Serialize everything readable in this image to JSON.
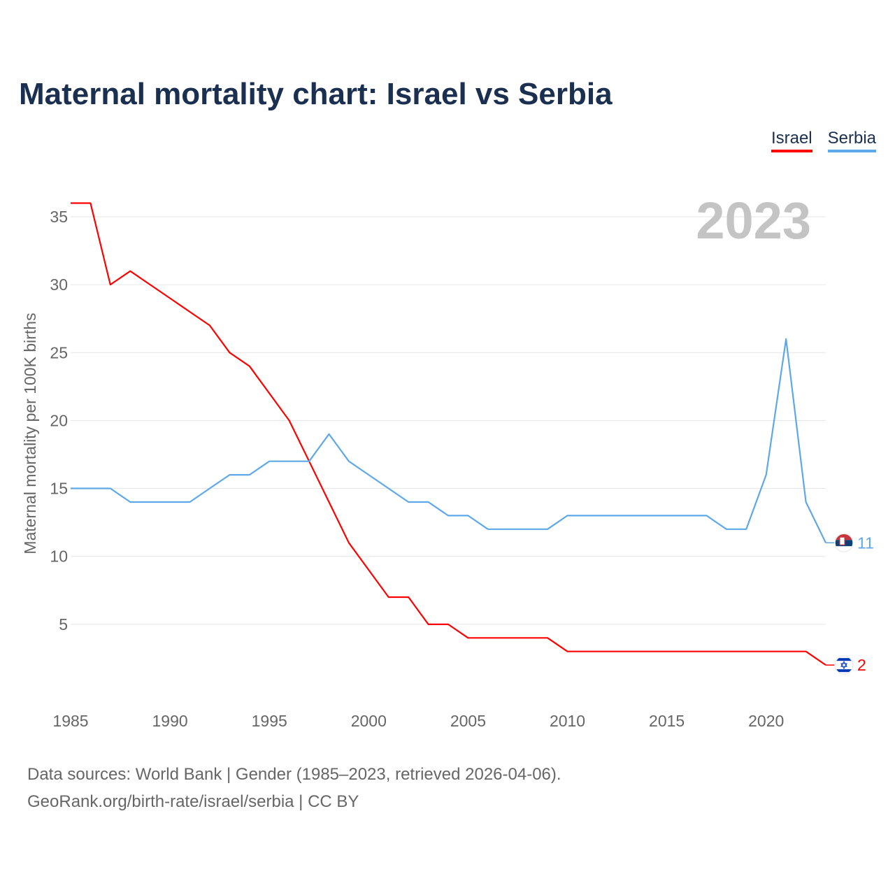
{
  "title": "Maternal mortality chart: Israel vs Serbia",
  "legend": [
    {
      "label": "Israel",
      "color": "#ff0000"
    },
    {
      "label": "Serbia",
      "color": "#5fa8e8"
    }
  ],
  "year_label": "2023",
  "source_line1": "Data sources: World Bank | Gender (1985–2023, retrieved 2026-04-06).",
  "source_line2": "GeoRank.org/birth-rate/israel/serbia | CC BY",
  "chart_data": {
    "type": "line",
    "title": "Maternal mortality chart: Israel vs Serbia",
    "xlabel": "",
    "ylabel": "Maternal mortality per 100K births",
    "x": [
      1985,
      1986,
      1987,
      1988,
      1989,
      1990,
      1991,
      1992,
      1993,
      1994,
      1995,
      1996,
      1997,
      1998,
      1999,
      2000,
      2001,
      2002,
      2003,
      2004,
      2005,
      2006,
      2007,
      2008,
      2009,
      2010,
      2011,
      2012,
      2013,
      2014,
      2015,
      2016,
      2017,
      2018,
      2019,
      2020,
      2021,
      2022,
      2023
    ],
    "xlim": [
      1985,
      2023
    ],
    "ylim": [
      0,
      37
    ],
    "xticks": [
      1985,
      1990,
      1995,
      2000,
      2005,
      2010,
      2015,
      2020
    ],
    "yticks": [
      5,
      10,
      15,
      20,
      25,
      30,
      35
    ],
    "grid": true,
    "legend_position": "top-right",
    "series": [
      {
        "name": "Israel",
        "color": "#ff0000",
        "end_label": "2",
        "values": [
          36,
          36,
          30,
          31,
          30,
          29,
          28,
          27,
          25,
          24,
          22,
          20,
          17,
          14,
          11,
          9,
          7,
          7,
          5,
          5,
          4,
          4,
          4,
          4,
          4,
          3,
          3,
          3,
          3,
          3,
          3,
          3,
          3,
          3,
          3,
          3,
          3,
          3,
          2
        ]
      },
      {
        "name": "Serbia",
        "color": "#5fa8e8",
        "end_label": "11",
        "values": [
          15,
          15,
          15,
          14,
          14,
          14,
          14,
          15,
          16,
          16,
          17,
          17,
          17,
          19,
          17,
          16,
          15,
          14,
          14,
          13,
          13,
          12,
          12,
          12,
          12,
          13,
          13,
          13,
          13,
          13,
          13,
          13,
          13,
          12,
          12,
          16,
          26,
          14,
          11
        ]
      }
    ]
  }
}
